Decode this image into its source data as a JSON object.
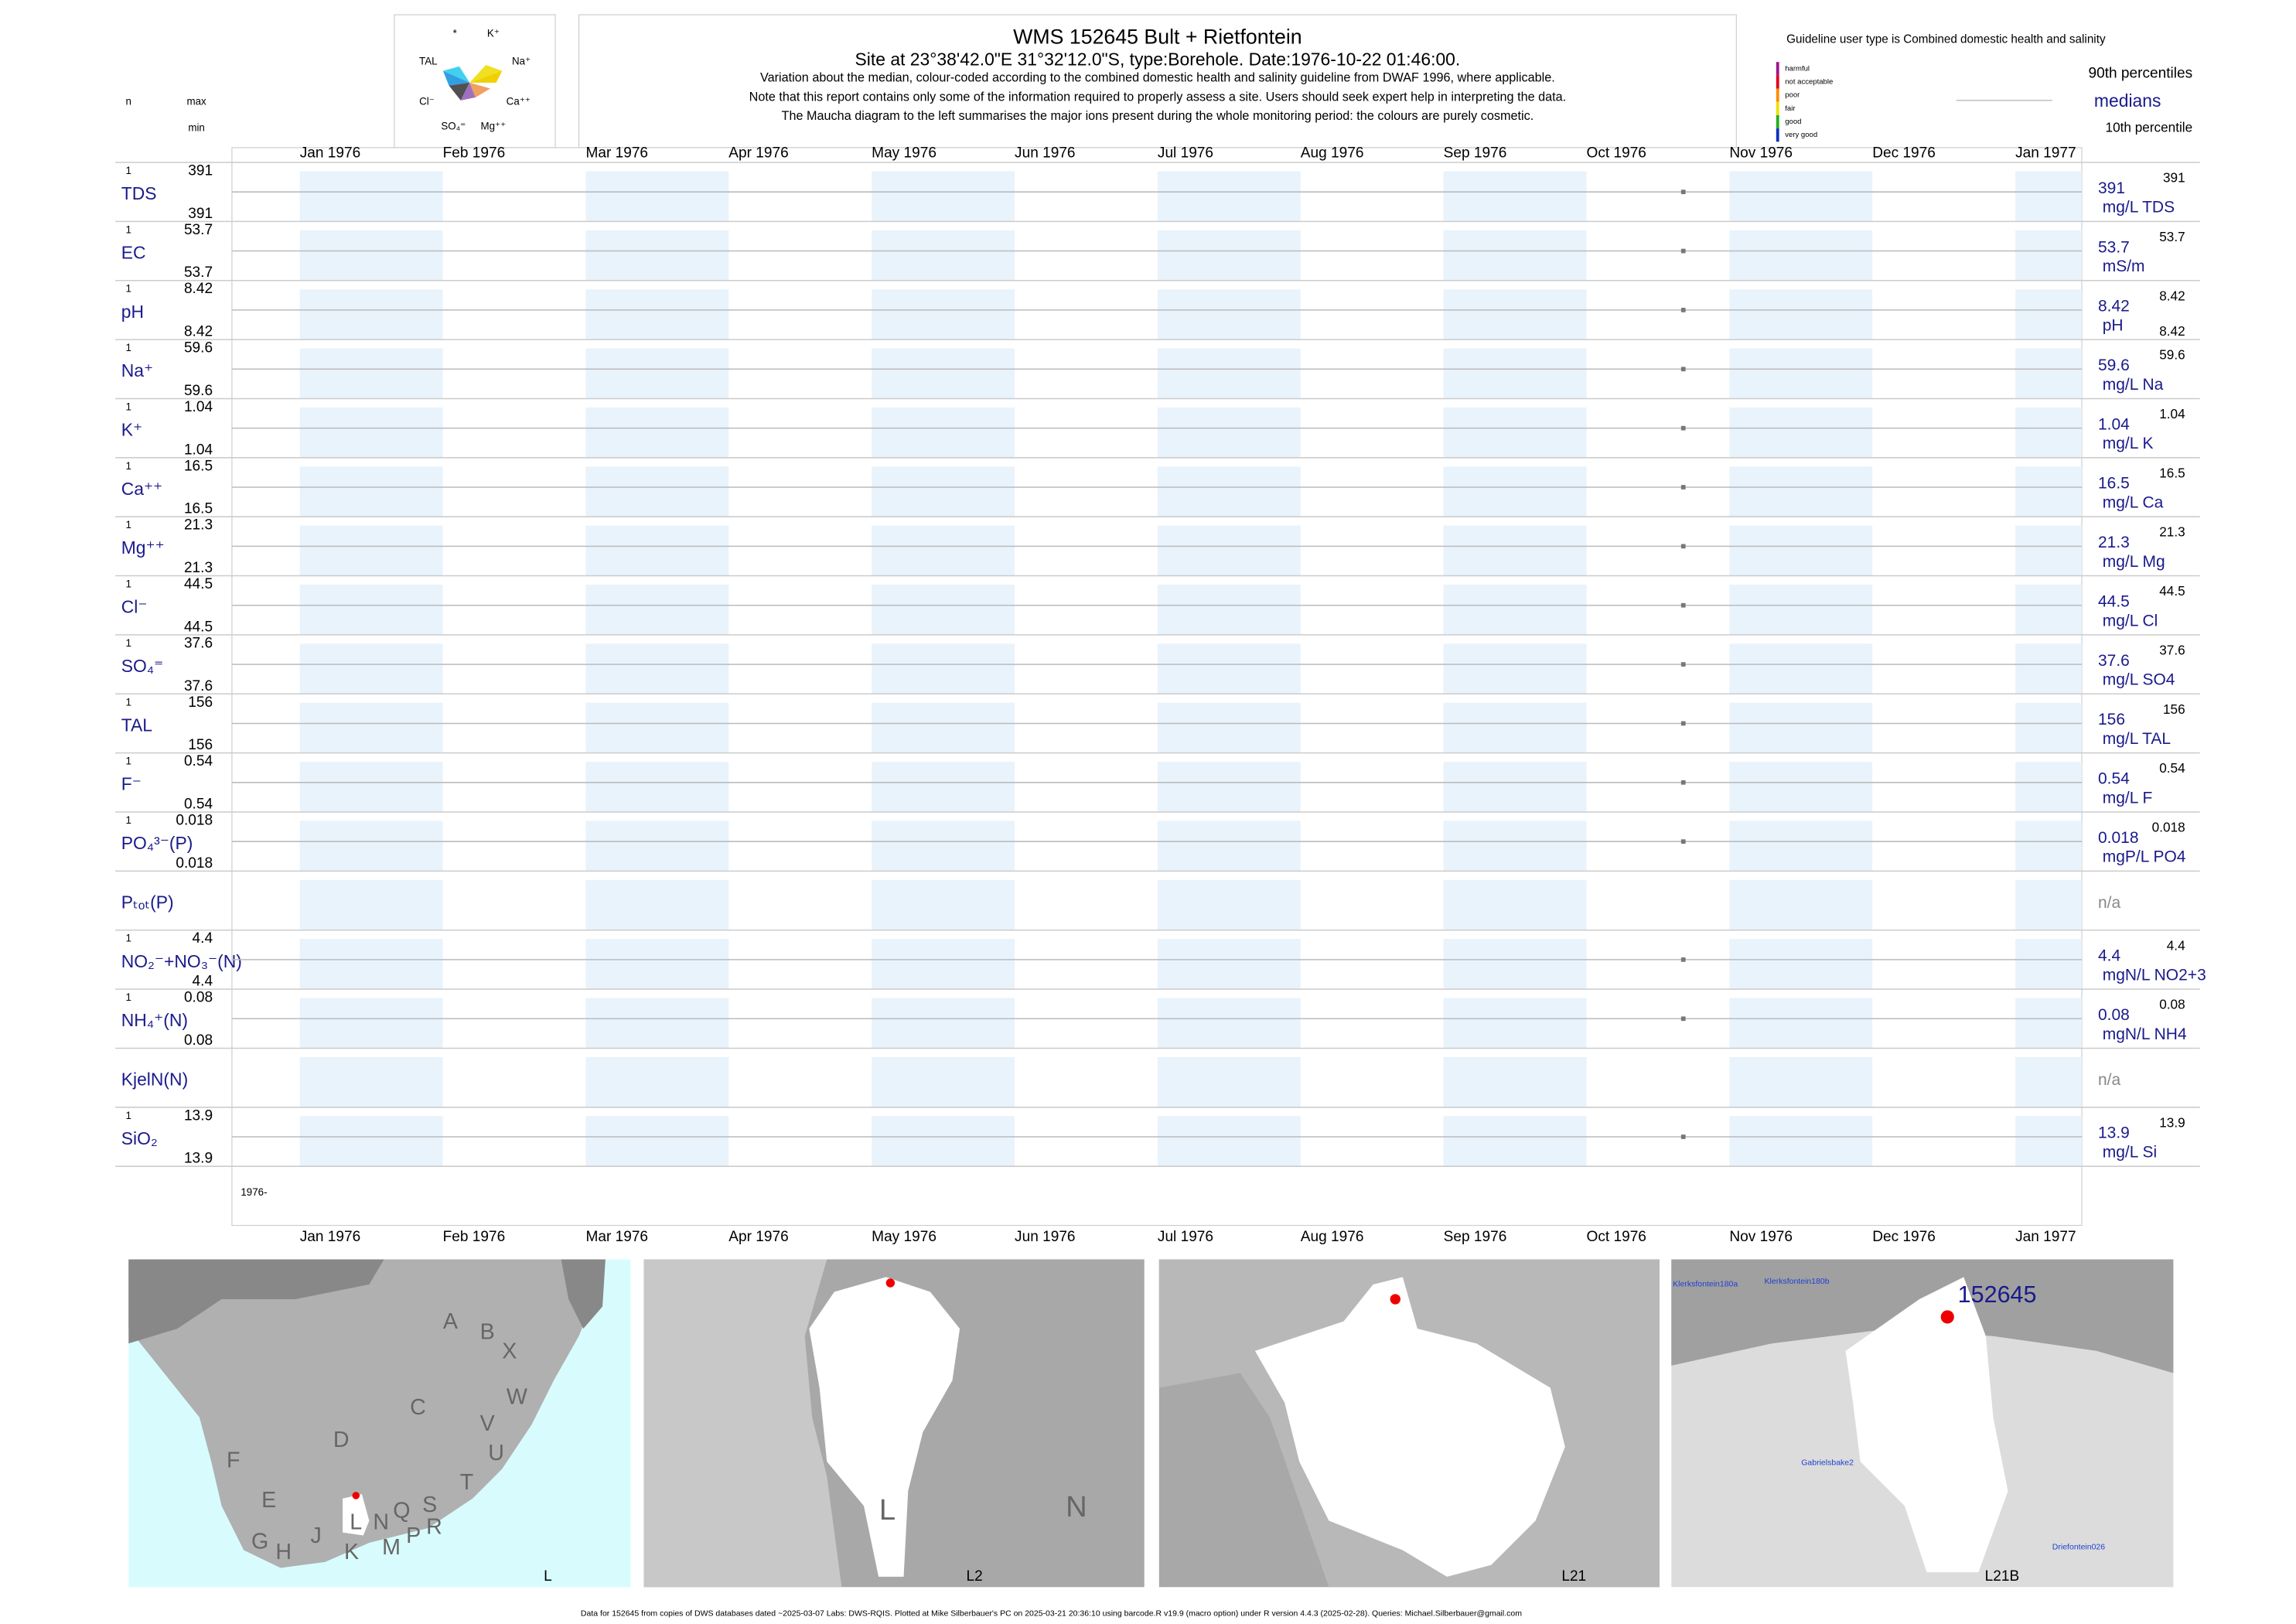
{
  "header": {
    "title": "WMS 152645  Bult + Rietfontein",
    "subtitle": "Site at 23°38'42.0\"E 31°32'12.0\"S, type:Borehole. Date:1976-10-22 01:46:00.",
    "lines": [
      "Variation about the median,  colour-coded according to the combined domestic health and salinity guideline from DWAF 1996, where applicable.",
      "Note that this report contains only some of the information required to properly assess a site. Users should seek expert help in interpreting the data.",
      "The Maucha diagram to the left summarises the major ions present during the whole monitoring period: the colours are purely cosmetic."
    ],
    "maucha_labels": [
      "*",
      "K⁺",
      "TAL",
      "Na⁺",
      "Cl⁻",
      "Ca⁺⁺",
      "SO₄⁼",
      "Mg⁺⁺"
    ]
  },
  "columns": {
    "n": "n",
    "max": "max",
    "min": "min"
  },
  "legend": {
    "guideline": "Guideline user type is Combined domestic health and salinity",
    "classes": [
      {
        "label": "harmful",
        "color": "#a0148c"
      },
      {
        "label": "not acceptable",
        "color": "#e0001a"
      },
      {
        "label": "poor",
        "color": "#ff8c00"
      },
      {
        "label": "fair",
        "color": "#f0e000"
      },
      {
        "label": "good",
        "color": "#20b020"
      },
      {
        "label": "very good",
        "color": "#1030c0"
      }
    ],
    "p90": "90th percentiles",
    "median": "medians",
    "p10": "10th percentile"
  },
  "months": [
    "Jan 1976",
    "Feb 1976",
    "Mar 1976",
    "Apr 1976",
    "May 1976",
    "Jun 1976",
    "Jul 1976",
    "Aug 1976",
    "Sep 1976",
    "Oct 1976",
    "Nov 1976",
    "Dec 1976",
    "Jan 1977"
  ],
  "rows": [
    {
      "name": "TDS",
      "n": 1,
      "max": 391,
      "min": 391,
      "median": 391,
      "unit": "mg/L TDS",
      "p90": 391
    },
    {
      "name": "EC",
      "n": 1,
      "max": 53.7,
      "min": 53.7,
      "median": 53.7,
      "unit": "mS/m",
      "p90": 53.7
    },
    {
      "name": "pH",
      "n": 1,
      "max": 8.42,
      "min": 8.42,
      "median": 8.42,
      "unit": "pH",
      "p90": 8.42,
      "p10": 8.42
    },
    {
      "name": "Na⁺",
      "n": 1,
      "max": 59.6,
      "min": 59.6,
      "median": 59.6,
      "unit": "mg/L Na",
      "p90": 59.6
    },
    {
      "name": "K⁺",
      "n": 1,
      "max": 1.04,
      "min": 1.04,
      "median": 1.04,
      "unit": "mg/L K",
      "p90": 1.04
    },
    {
      "name": "Ca⁺⁺",
      "n": 1,
      "max": 16.5,
      "min": 16.5,
      "median": 16.5,
      "unit": "mg/L Ca",
      "p90": 16.5
    },
    {
      "name": "Mg⁺⁺",
      "n": 1,
      "max": 21.3,
      "min": 21.3,
      "median": 21.3,
      "unit": "mg/L Mg",
      "p90": 21.3
    },
    {
      "name": "Cl⁻",
      "n": 1,
      "max": 44.5,
      "min": 44.5,
      "median": 44.5,
      "unit": "mg/L Cl",
      "p90": 44.5
    },
    {
      "name": "SO₄⁼",
      "n": 1,
      "max": 37.6,
      "min": 37.6,
      "median": 37.6,
      "unit": "mg/L SO4",
      "p90": 37.6
    },
    {
      "name": "TAL",
      "n": 1,
      "max": 156,
      "min": 156,
      "median": 156,
      "unit": "mg/L TAL",
      "p90": 156
    },
    {
      "name": "F⁻",
      "n": 1,
      "max": 0.54,
      "min": 0.54,
      "median": 0.54,
      "unit": "mg/L F",
      "p90": 0.54
    },
    {
      "name": "PO₄³⁻(P)",
      "n": 1,
      "max": 0.018,
      "min": 0.018,
      "median": 0.018,
      "unit": "mgP/L PO4",
      "p90": 0.018
    },
    {
      "name": "Pₜₒₜ(P)",
      "median": "n/a"
    },
    {
      "name": "NO₂⁻+NO₃⁻(N)",
      "n": 1,
      "max": 4.4,
      "min": 4.4,
      "median": 4.4,
      "unit": "mgN/L NO2+3",
      "p90": 4.4
    },
    {
      "name": "NH₄⁺(N)",
      "n": 1,
      "max": 0.08,
      "min": 0.08,
      "median": 0.08,
      "unit": "mgN/L NH4",
      "p90": 0.08
    },
    {
      "name": "KjelN(N)",
      "median": "n/a"
    },
    {
      "name": "SiO₂",
      "n": 1,
      "max": 13.9,
      "min": 13.9,
      "median": 13.9,
      "unit": "mg/L Si",
      "p90": 13.9
    }
  ],
  "year_label": "1976-",
  "maps": [
    {
      "labels": [
        "A",
        "B",
        "X",
        "C",
        "W",
        "V",
        "U",
        "D",
        "F",
        "E",
        "T",
        "G",
        "H",
        "J",
        "L",
        "K",
        "M",
        "N",
        "Q",
        "S",
        "P",
        "R"
      ],
      "caption": "L"
    },
    {
      "labels": [
        "L",
        "N"
      ],
      "caption": "L2"
    },
    {
      "labels": [],
      "caption": "L21"
    },
    {
      "labels": [
        "152645",
        "Klerksfontein180a",
        "Klerksfontein180b",
        "Gabrielsbake2",
        "Driefontein026"
      ],
      "caption": "L21B"
    }
  ],
  "footer": "Data for 152645 from copies of DWS databases dated ~2025-03-07 Labs: DWS-RQIS. Plotted at Mike Silberbauer's PC on 2025-03-21 20:36:10 using barcode.R v19.9 (macro option) under R version 4.4.3 (2025-02-28). Queries: Michael.Silberbauer@gmail.com"
}
